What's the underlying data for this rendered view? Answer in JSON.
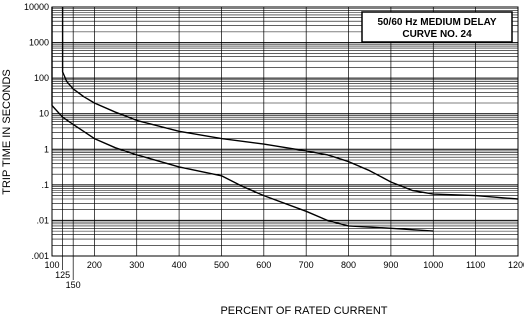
{
  "chart_data": {
    "type": "line",
    "title_lines": [
      "50/60 Hz MEDIUM DELAY",
      "CURVE NO. 24"
    ],
    "xlabel": "PERCENT OF RATED CURRENT",
    "ylabel": "TRIP TIME IN SECONDS",
    "x_scale": "linear",
    "y_scale": "log",
    "xlim": [
      100,
      1200
    ],
    "ylim": [
      0.001,
      10000
    ],
    "x_ticks": [
      {
        "value": 100,
        "label": "100",
        "row": 0
      },
      {
        "value": 125,
        "label": "125",
        "row": 1
      },
      {
        "value": 150,
        "label": "150",
        "row": 2
      },
      {
        "value": 200,
        "label": "200",
        "row": 0
      },
      {
        "value": 300,
        "label": "300",
        "row": 0
      },
      {
        "value": 400,
        "label": "400",
        "row": 0
      },
      {
        "value": 500,
        "label": "500",
        "row": 0
      },
      {
        "value": 600,
        "label": "600",
        "row": 0
      },
      {
        "value": 700,
        "label": "700",
        "row": 0
      },
      {
        "value": 800,
        "label": "800",
        "row": 0
      },
      {
        "value": 900,
        "label": "900",
        "row": 0
      },
      {
        "value": 1000,
        "label": "1000",
        "row": 0
      },
      {
        "value": 1100,
        "label": "1100",
        "row": 0
      },
      {
        "value": 1200,
        "label": "1200",
        "row": 0
      }
    ],
    "y_ticks": [
      {
        "value": 10000,
        "label": "10000"
      },
      {
        "value": 1000,
        "label": "1000"
      },
      {
        "value": 100,
        "label": "100"
      },
      {
        "value": 10,
        "label": "10"
      },
      {
        "value": 1,
        "label": "1"
      },
      {
        "value": 0.1,
        "label": ".1"
      },
      {
        "value": 0.01,
        "label": ".01"
      },
      {
        "value": 0.001,
        "label": ".001"
      }
    ],
    "grid": true,
    "series": [
      {
        "points": [
          [
            125,
            10000
          ],
          [
            125,
            150
          ],
          [
            135,
            80
          ],
          [
            150,
            50
          ],
          [
            175,
            30
          ],
          [
            200,
            20
          ],
          [
            250,
            11
          ],
          [
            300,
            6.5
          ],
          [
            400,
            3.2
          ],
          [
            500,
            2.0
          ],
          [
            600,
            1.4
          ],
          [
            700,
            0.9
          ],
          [
            750,
            0.7
          ],
          [
            800,
            0.45
          ],
          [
            850,
            0.25
          ],
          [
            900,
            0.12
          ],
          [
            950,
            0.07
          ],
          [
            1000,
            0.055
          ],
          [
            1100,
            0.05
          ],
          [
            1200,
            0.04
          ]
        ]
      },
      {
        "points": [
          [
            100,
            10000
          ],
          [
            100,
            17
          ],
          [
            125,
            8
          ],
          [
            150,
            5
          ],
          [
            200,
            2
          ],
          [
            250,
            1.1
          ],
          [
            300,
            0.7
          ],
          [
            400,
            0.32
          ],
          [
            500,
            0.18
          ],
          [
            550,
            0.09
          ],
          [
            600,
            0.05
          ],
          [
            700,
            0.018
          ],
          [
            750,
            0.01
          ],
          [
            800,
            0.007
          ],
          [
            900,
            0.006
          ],
          [
            1000,
            0.005
          ]
        ]
      }
    ]
  }
}
